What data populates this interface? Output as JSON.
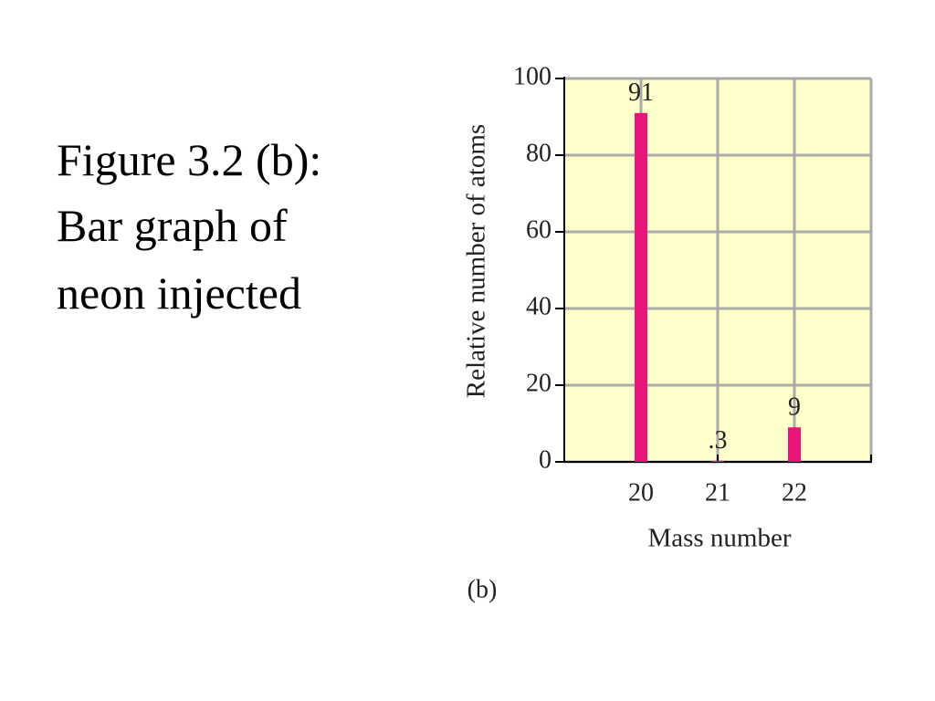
{
  "caption_lines": [
    "Figure 3.2 (b):",
    "Bar graph of",
    "neon injected"
  ],
  "chart_data": {
    "type": "bar",
    "categories": [
      "20",
      "21",
      "22"
    ],
    "values": [
      91,
      0.3,
      9
    ],
    "value_labels": [
      "91",
      ".3",
      "9"
    ],
    "color": "#e8157a",
    "xlabel": "Mass number",
    "ylabel": "Relative number of atoms",
    "panel_label": "(b)",
    "ylim": [
      0,
      100
    ],
    "yticks": [
      0,
      20,
      40,
      60,
      80,
      100
    ],
    "grid": true
  }
}
